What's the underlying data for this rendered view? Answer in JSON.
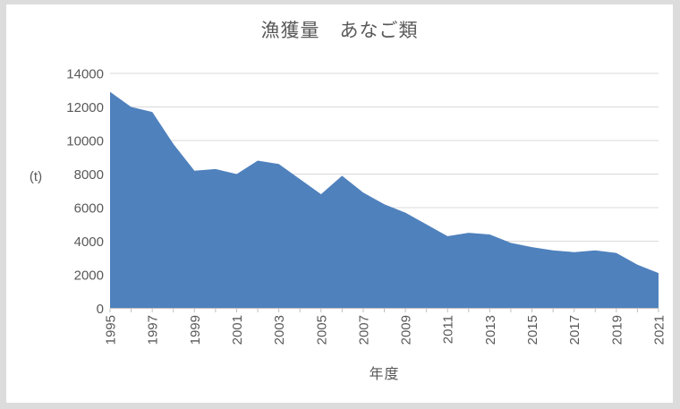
{
  "chart": {
    "title": "漁獲量　あなご類",
    "y_unit_label": "(t)",
    "x_axis_title": "年度"
  },
  "chart_data": {
    "type": "area",
    "title": "漁獲量　あなご類",
    "xlabel": "年度",
    "ylabel": "(t)",
    "x": [
      1995,
      1996,
      1997,
      1998,
      1999,
      2000,
      2001,
      2002,
      2003,
      2004,
      2005,
      2006,
      2007,
      2008,
      2009,
      2010,
      2011,
      2012,
      2013,
      2014,
      2015,
      2016,
      2017,
      2018,
      2019,
      2020,
      2021
    ],
    "values": [
      12900,
      12000,
      11700,
      9800,
      8200,
      8300,
      8000,
      8800,
      8600,
      7700,
      6800,
      7900,
      6900,
      6200,
      5700,
      5000,
      4300,
      4500,
      4400,
      3900,
      3650,
      3450,
      3350,
      3450,
      3300,
      2600,
      2100
    ],
    "ylim": [
      0,
      14000
    ],
    "yticks": [
      0,
      2000,
      4000,
      6000,
      8000,
      10000,
      12000,
      14000
    ],
    "xtick_labels": [
      "1995",
      "1997",
      "1999",
      "2001",
      "2003",
      "2005",
      "2007",
      "2009",
      "2011",
      "2013",
      "2015",
      "2017",
      "2019",
      "2021"
    ],
    "xtick_label_interval": 2,
    "xtick_label_rotation": -90,
    "grid": true,
    "legend": false,
    "colors": {
      "series_fill": "#4F81BD",
      "gridline": "#D9D9D9",
      "axis_line": "#BFBFBF",
      "axis_text": "#595959",
      "title_text": "#595959",
      "plot_background": "#FFFFFF",
      "page_background": "#DCDCDC"
    }
  }
}
